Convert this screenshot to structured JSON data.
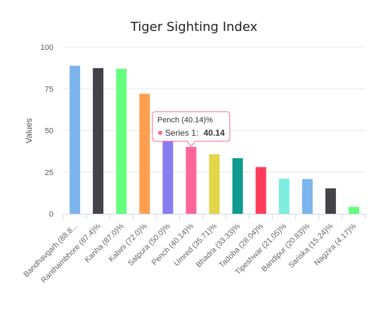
{
  "chart_data": {
    "type": "bar",
    "title": "Tiger Sighting Index",
    "xlabel": "",
    "ylabel": "Values",
    "ylim": [
      0,
      100
    ],
    "yticks": [
      0,
      25,
      50,
      75,
      100
    ],
    "grid": true,
    "legend": "none",
    "categories": [
      "Bandhavgarh (88.8...",
      "Ranthambhore (87.4)%",
      "Kanha (87.0)%",
      "Kabini (72.0)%",
      "Satpura (50.0)%",
      "Pench (40.14)%",
      "Umred (35.71)%",
      "Bhadra (33.33)%",
      "Tadoba (28.04)%",
      "Tipeshwar (21.05)%",
      "Bandipur (20.83)%",
      "Sariska (15.24)%",
      "Nagzira (4.17)%"
    ],
    "series": [
      {
        "values": [
          88.8,
          87.4,
          87.0,
          72.0,
          50.0,
          40.14,
          35.71,
          33.33,
          28.04,
          21.05,
          20.83,
          15.24,
          4.17
        ],
        "colors": [
          "#7cb5ec",
          "#434348",
          "#66ff7f",
          "#ff9f4f",
          "#8a7cf0",
          "#ff6699",
          "#e3d64a",
          "#0f9a8f",
          "#ff3b5c",
          "#7dede0",
          "#7cb5ec",
          "#434348",
          "#66ff7f"
        ]
      }
    ],
    "tooltip": {
      "title": "Pench (40.14)%",
      "series_label": "Series 1:",
      "value": "40.14",
      "marker_color": "#ff6699"
    }
  }
}
